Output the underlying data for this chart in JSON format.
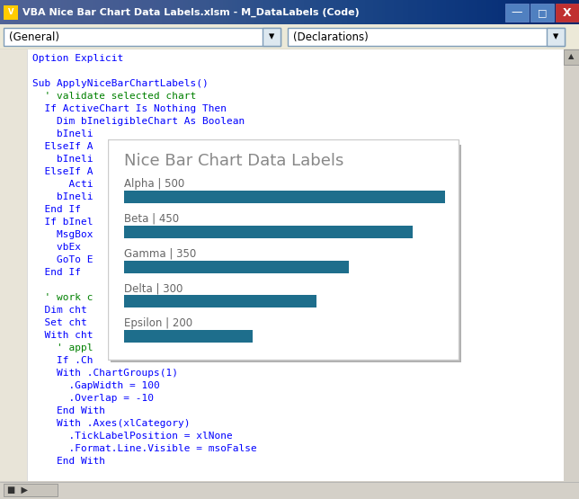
{
  "title": "VBA Nice Bar Chart Data Labels.xlsm - M_DataLabels (Code)",
  "chart_title": "Nice Bar Chart Data Labels",
  "categories": [
    "Alpha",
    "Beta",
    "Gamma",
    "Delta",
    "Epsilon"
  ],
  "values": [
    500,
    450,
    350,
    300,
    200
  ],
  "bar_color": "#1e6e8c",
  "window_outer_bg": "#d4d0c8",
  "titlebar_bg": "#0a246a",
  "titlebar_gradient_end": "#a6caf0",
  "toolbar_bg": "#ece9d8",
  "code_bg": "#ffffff",
  "margin_bg": "#e8e4d8",
  "scrollbar_bg": "#d4d0c8",
  "chart_bg": "#ffffff",
  "chart_shadow": "#c0c0c0",
  "label_color": "#666666",
  "chart_title_color": "#888888",
  "code_blue": "#0000ff",
  "code_green": "#008000",
  "statusbar_bg": "#d4d0c8",
  "dropdown_bg": "#ffffff",
  "dropdown_border": "#7f9db9",
  "vba_lines": [
    {
      "text": "Option Explicit",
      "color": "#0000ff",
      "indent": 0
    },
    {
      "text": "",
      "color": "#000000",
      "indent": 0
    },
    {
      "text": "Sub ApplyNiceBarChartLabels()",
      "color": "#0000ff",
      "indent": 0
    },
    {
      "text": "  ' validate selected chart",
      "color": "#008000",
      "indent": 0
    },
    {
      "text": "  If ActiveChart Is Nothing Then",
      "color": "#0000ff",
      "indent": 0
    },
    {
      "text": "    Dim bIneligibleChart As Boolean",
      "color": "#0000ff",
      "indent": 0
    },
    {
      "text": "    bIneli",
      "color": "#0000ff",
      "indent": 0
    },
    {
      "text": "  ElseIf A",
      "color": "#0000ff",
      "indent": 0
    },
    {
      "text": "    bIneli",
      "color": "#0000ff",
      "indent": 0
    },
    {
      "text": "  ElseIf A",
      "color": "#0000ff",
      "indent": 0
    },
    {
      "text": "      Acti",
      "color": "#0000ff",
      "indent": 0
    },
    {
      "text": "    bIneli",
      "color": "#0000ff",
      "indent": 0
    },
    {
      "text": "  End If",
      "color": "#0000ff",
      "indent": 0
    },
    {
      "text": "  If bInel",
      "color": "#0000ff",
      "indent": 0
    },
    {
      "text": "    MsgBox",
      "color": "#0000ff",
      "indent": 0
    },
    {
      "text": "    vbEx",
      "color": "#0000ff",
      "indent": 0
    },
    {
      "text": "    GoTo E",
      "color": "#0000ff",
      "indent": 0
    },
    {
      "text": "  End If",
      "color": "#0000ff",
      "indent": 0
    },
    {
      "text": "",
      "color": "#000000",
      "indent": 0
    },
    {
      "text": "  ' work c",
      "color": "#008000",
      "indent": 0
    },
    {
      "text": "  Dim cht",
      "color": "#0000ff",
      "indent": 0
    },
    {
      "text": "  Set cht",
      "color": "#0000ff",
      "indent": 0
    },
    {
      "text": "  With cht",
      "color": "#0000ff",
      "indent": 0
    },
    {
      "text": "    ' appl",
      "color": "#008000",
      "indent": 0
    },
    {
      "text": "    If .Ch",
      "color": "#0000ff",
      "indent": 0
    },
    {
      "text": "    With .ChartGroups(1)",
      "color": "#0000ff",
      "indent": 0
    },
    {
      "text": "      .GapWidth = 100",
      "color": "#0000ff",
      "indent": 0
    },
    {
      "text": "      .Overlap = -10",
      "color": "#0000ff",
      "indent": 0
    },
    {
      "text": "    End With",
      "color": "#0000ff",
      "indent": 0
    },
    {
      "text": "    With .Axes(xlCategory)",
      "color": "#0000ff",
      "indent": 0
    },
    {
      "text": "      .TickLabelPosition = xlNone",
      "color": "#0000ff",
      "indent": 0
    },
    {
      "text": "      .Format.Line.Visible = msoFalse",
      "color": "#0000ff",
      "indent": 0
    },
    {
      "text": "    End With",
      "color": "#0000ff",
      "indent": 0
    }
  ],
  "max_val": 500,
  "fig_w": 6.44,
  "fig_h": 5.55,
  "dpi": 100
}
